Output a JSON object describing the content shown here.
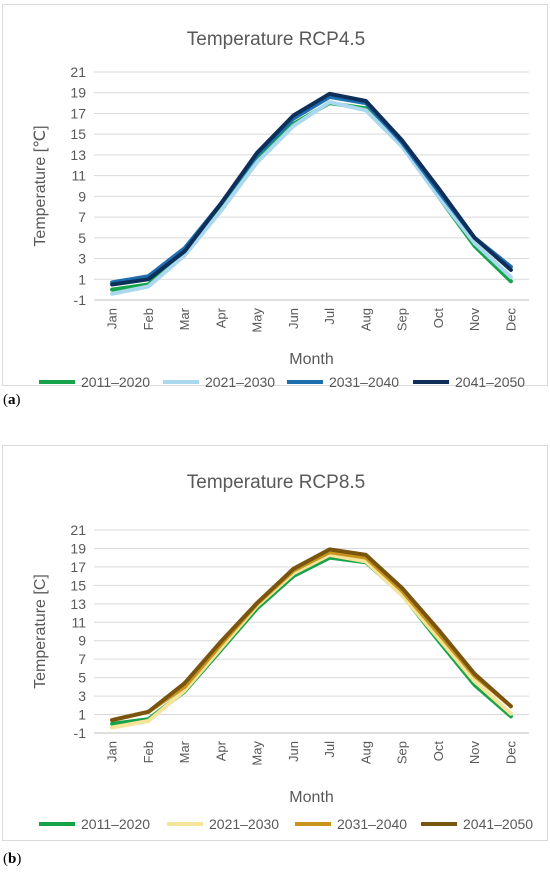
{
  "chart_data": [
    {
      "type": "line",
      "panel_label": "a",
      "title": "Temperature RCP4.5",
      "xlabel": "Month",
      "ylabel": "Temperature [℃]",
      "ylim": [
        -1,
        21
      ],
      "yticks": [
        -1,
        1,
        3,
        5,
        7,
        9,
        11,
        13,
        15,
        17,
        19,
        21
      ],
      "grid": true,
      "legend": "bottom",
      "categories": [
        "Jan",
        "Feb",
        "Mar",
        "Apr",
        "May",
        "Jun",
        "Jul",
        "Aug",
        "Sep",
        "Oct",
        "Nov",
        "Dec"
      ],
      "series": [
        {
          "name": "2011–2020",
          "color": "#16a34a",
          "values": [
            0.0,
            0.5,
            3.5,
            8.0,
            12.5,
            16.0,
            18.0,
            17.5,
            14.0,
            9.0,
            4.2,
            0.8
          ]
        },
        {
          "name": "2021–2030",
          "color": "#a9d8ef",
          "values": [
            -0.4,
            0.3,
            3.3,
            7.6,
            12.3,
            15.8,
            18.1,
            17.3,
            13.8,
            9.0,
            4.5,
            1.2
          ]
        },
        {
          "name": "2031–2040",
          "color": "#1e6fb0",
          "values": [
            0.7,
            1.3,
            4.0,
            8.3,
            13.0,
            16.5,
            18.6,
            18.0,
            14.2,
            9.5,
            5.0,
            2.2
          ]
        },
        {
          "name": "2041–2050",
          "color": "#0e2f5a",
          "values": [
            0.5,
            1.0,
            3.7,
            8.3,
            13.2,
            16.8,
            18.9,
            18.2,
            14.4,
            9.8,
            5.0,
            1.9
          ]
        }
      ]
    },
    {
      "type": "line",
      "panel_label": "b",
      "title": "Temperature RCP8.5",
      "xlabel": "Month",
      "ylabel": "Temperature [C]",
      "ylim": [
        -1,
        21
      ],
      "yticks": [
        -1,
        1,
        3,
        5,
        7,
        9,
        11,
        13,
        15,
        17,
        19,
        21
      ],
      "grid": true,
      "legend": "bottom",
      "categories": [
        "Jan",
        "Feb",
        "Mar",
        "Apr",
        "May",
        "Jun",
        "Jul",
        "Aug",
        "Sep",
        "Oct",
        "Nov",
        "Dec"
      ],
      "series": [
        {
          "name": "2011–2020",
          "color": "#16a34a",
          "values": [
            0.0,
            0.5,
            3.5,
            8.0,
            12.5,
            16.0,
            18.0,
            17.5,
            14.0,
            9.0,
            4.2,
            0.8
          ]
        },
        {
          "name": "2021–2030",
          "color": "#f6e49a",
          "values": [
            -0.4,
            0.3,
            3.6,
            8.2,
            12.8,
            16.3,
            18.3,
            17.6,
            13.9,
            9.3,
            4.6,
            1.1
          ]
        },
        {
          "name": "2031–2040",
          "color": "#c9941c",
          "values": [
            0.4,
            1.3,
            4.0,
            8.6,
            13.0,
            16.6,
            18.6,
            18.0,
            14.4,
            9.8,
            5.2,
            1.9
          ]
        },
        {
          "name": "2041–2050",
          "color": "#7a5510",
          "values": [
            0.4,
            1.3,
            4.4,
            8.9,
            13.1,
            16.8,
            18.9,
            18.3,
            14.7,
            10.2,
            5.4,
            1.9
          ]
        }
      ]
    }
  ]
}
